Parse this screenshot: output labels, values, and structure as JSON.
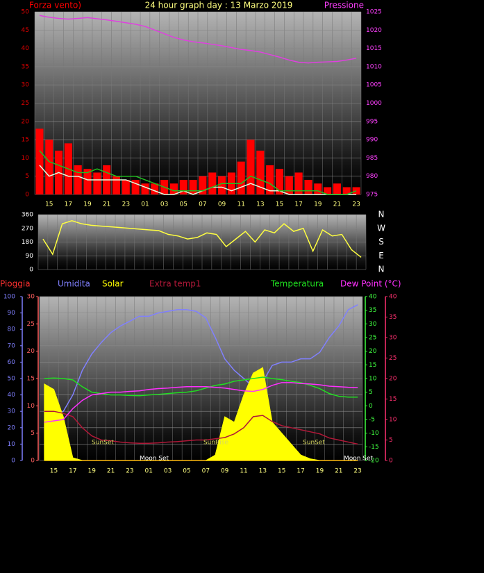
{
  "chart_data": [
    {
      "type": "line",
      "title": "24 hour graph day : 13 Marzo 2019",
      "ylabel": "Forza vento)",
      "y2label": "Pressione",
      "categories": [
        null,
        "15",
        null,
        "17",
        null,
        "19",
        null,
        "21",
        null,
        "23",
        null,
        "01",
        null,
        "03",
        null,
        "05",
        null,
        "07",
        null,
        "09",
        null,
        "11",
        null,
        "13",
        null,
        "15",
        null,
        "17",
        null,
        "19",
        null,
        "21",
        null,
        "23"
      ],
      "ylim": [
        0,
        50
      ],
      "yticks": [
        0,
        5,
        10,
        15,
        20,
        25,
        30,
        35,
        40,
        45,
        50
      ],
      "y2lim": [
        975,
        1025
      ],
      "y2ticks": [
        975,
        980,
        985,
        990,
        995,
        1000,
        1005,
        1010,
        1015,
        1020,
        1025
      ],
      "grid": true,
      "series": [
        {
          "color": "#ff0000",
          "kind": "bar",
          "values": [
            18,
            15,
            12,
            14,
            8,
            7,
            6,
            8,
            5,
            4,
            4,
            3,
            3,
            4,
            3,
            4,
            4,
            5,
            6,
            5,
            6,
            9,
            15,
            12,
            8,
            7,
            5,
            6,
            4,
            3,
            2,
            3,
            2,
            2
          ]
        },
        {
          "color": "#e0ffe0",
          "values": [
            8,
            5,
            6,
            5,
            5,
            4,
            4,
            4,
            4,
            4,
            3,
            2,
            1,
            0,
            0,
            1,
            0,
            1,
            2,
            2,
            1,
            2,
            3,
            2,
            1,
            1,
            0,
            0,
            0,
            0,
            0,
            0,
            0,
            0
          ]
        },
        {
          "color": "#20c020",
          "values": [
            12,
            9,
            8,
            7,
            6,
            6,
            7,
            6,
            5,
            5,
            5,
            4,
            3,
            2,
            1,
            1,
            1,
            1,
            2,
            3,
            3,
            3,
            5,
            4,
            3,
            1,
            1,
            1,
            1,
            1,
            0,
            0,
            0,
            1
          ]
        },
        {
          "color": "#e040e0",
          "axis": "y2",
          "values": [
            1024,
            1023.5,
            1023.2,
            1023,
            1023.2,
            1023.4,
            1023.1,
            1022.8,
            1022.4,
            1022,
            1021.6,
            1021,
            1020,
            1019,
            1018,
            1017.3,
            1016.8,
            1016.5,
            1016.1,
            1015.7,
            1015.2,
            1014.7,
            1014.4,
            1014,
            1013.3,
            1012.6,
            1011.8,
            1011.2,
            1011,
            1011.2,
            1011.3,
            1011.4,
            1011.8,
            1012.3
          ]
        }
      ]
    },
    {
      "type": "line",
      "ylim": [
        0,
        360
      ],
      "yticks": [
        0,
        90,
        180,
        270,
        360
      ],
      "y2lim": [
        0,
        360
      ],
      "y2ticks": [
        {
          "value": 0,
          "label": "N"
        },
        {
          "value": 90,
          "label": "E"
        },
        {
          "value": 180,
          "label": "S"
        },
        {
          "value": 270,
          "label": "W"
        },
        {
          "value": 360,
          "label": "N"
        }
      ],
      "grid": true,
      "series": [
        {
          "color": "#ffff40",
          "values": [
            200,
            100,
            300,
            320,
            300,
            290,
            285,
            280,
            275,
            270,
            265,
            260,
            255,
            230,
            220,
            200,
            210,
            240,
            230,
            150,
            200,
            250,
            180,
            260,
            240,
            300,
            250,
            270,
            120,
            260,
            220,
            230,
            130,
            80
          ]
        }
      ]
    },
    {
      "type": "line",
      "categories": [
        null,
        "15",
        null,
        "17",
        null,
        "19",
        null,
        "21",
        null,
        "23",
        null,
        "01",
        null,
        "03",
        null,
        "05",
        null,
        "07",
        null,
        "09",
        null,
        "11",
        null,
        "13",
        null,
        "15",
        null,
        "17",
        null,
        "19",
        null,
        "21",
        null,
        "23"
      ],
      "ylim": [
        0,
        100
      ],
      "yticks": [
        0,
        10,
        20,
        30,
        40,
        50,
        60,
        70,
        80,
        90,
        100
      ],
      "y3lim": [
        0,
        30
      ],
      "y3ticks": [
        0,
        5,
        10,
        15,
        20,
        25,
        30
      ],
      "y2lim": [
        -20,
        40
      ],
      "y2ticks": [
        -20,
        -15,
        -10,
        -5,
        0,
        5,
        10,
        15,
        20,
        25,
        30,
        35,
        40
      ],
      "y4lim": [
        0,
        40
      ],
      "y4ticks": [
        0,
        5,
        10,
        15,
        20,
        25,
        30,
        35,
        40
      ],
      "grid": true,
      "annotations": [
        "SunSet",
        "SunRise",
        "SunSet",
        "Moon Set",
        "Moon Set"
      ],
      "series": [
        {
          "name": "Pioggia",
          "color": "#ff3030",
          "axis": "y3",
          "values": [
            0,
            0,
            0,
            0,
            0,
            0,
            0,
            0,
            0,
            0,
            0,
            0,
            0,
            0,
            0,
            0,
            0,
            0,
            0,
            0,
            0,
            0,
            0,
            0,
            0,
            0,
            0,
            0,
            0,
            0,
            0,
            0,
            0,
            0
          ]
        },
        {
          "name": "Umidita",
          "color": "#8080ff",
          "values": [
            28,
            28,
            30,
            40,
            55,
            65,
            72,
            78,
            82,
            85,
            88,
            88,
            90,
            91,
            92,
            92,
            91,
            87,
            75,
            62,
            55,
            50,
            45,
            48,
            58,
            60,
            60,
            62,
            62,
            66,
            75,
            82,
            92,
            95
          ]
        },
        {
          "name": "Solar",
          "color": "#ffff00",
          "kind": "area",
          "axis": "y3",
          "values": [
            14,
            13,
            8,
            0.5,
            0,
            0,
            0,
            0,
            0,
            0,
            0,
            0,
            0,
            0,
            0,
            0,
            0,
            0,
            1,
            8,
            7,
            12,
            16,
            17,
            7,
            5,
            3,
            1,
            0.3,
            0,
            0,
            0,
            0,
            0
          ]
        },
        {
          "name": "Extra temp1",
          "color": "#b01838",
          "axis": "y4",
          "values": [
            12,
            12,
            11.5,
            10.7,
            8,
            6,
            5,
            4.8,
            4.5,
            4.3,
            4.2,
            4.2,
            4.3,
            4.5,
            4.6,
            4.8,
            5,
            5,
            5.3,
            5.6,
            6.5,
            8,
            10.7,
            11,
            9.5,
            8.5,
            8,
            7.5,
            7,
            6.5,
            5.5,
            5,
            4.5,
            4
          ]
        },
        {
          "name": "Temperatura",
          "color": "#20e020",
          "axis": "y2",
          "values": [
            10,
            10.2,
            10,
            9.5,
            7,
            5,
            4.5,
            4,
            4,
            3.8,
            3.7,
            4,
            4.2,
            4.5,
            4.8,
            5,
            5.5,
            6.5,
            7.5,
            8,
            9,
            9.5,
            10,
            10.5,
            10,
            9.6,
            9,
            8.5,
            7.5,
            6.3,
            4.5,
            3.5,
            3.2,
            3.2
          ]
        },
        {
          "name": "Dew Point (°C)",
          "color": "#ff30ff",
          "axis": "y2",
          "values": [
            -6,
            -5.5,
            -5,
            -1,
            2,
            4,
            4.5,
            5,
            5,
            5.3,
            5.5,
            6,
            6.3,
            6.5,
            6.8,
            7,
            7,
            7,
            6.8,
            6.5,
            6,
            5.5,
            5.3,
            6,
            7.5,
            8.5,
            8.5,
            8.2,
            8,
            7.7,
            7.2,
            7,
            6.8,
            6.7
          ]
        }
      ]
    }
  ]
}
